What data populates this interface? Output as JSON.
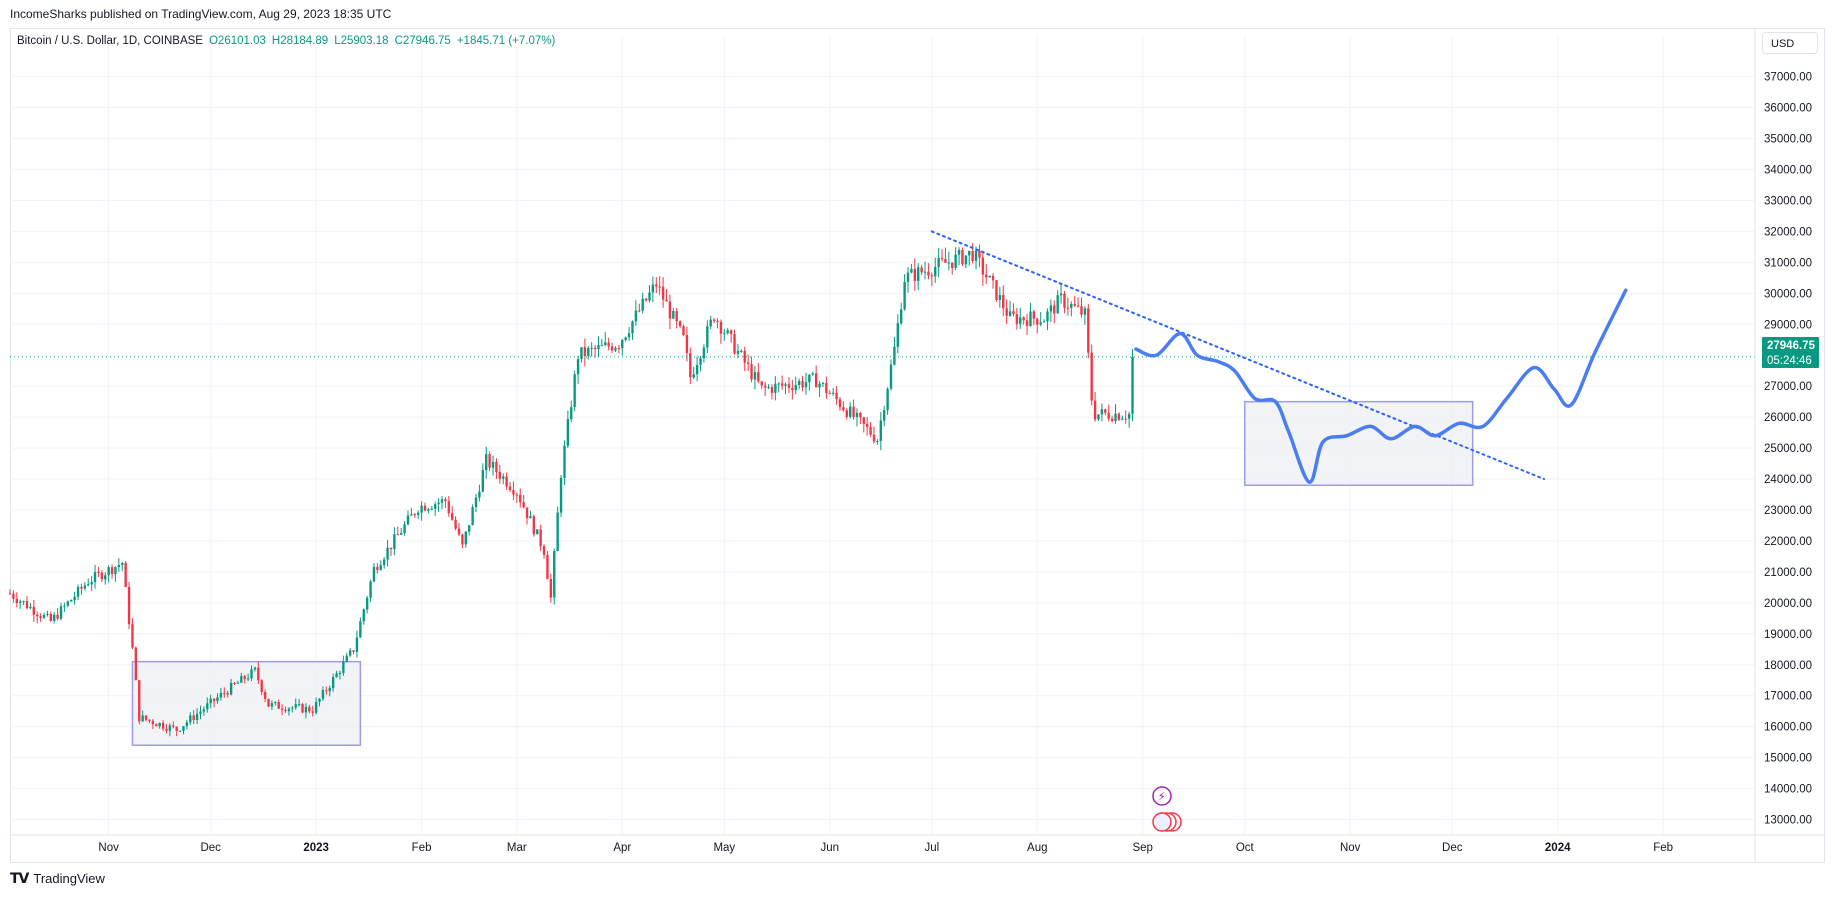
{
  "header": {
    "published_line": "IncomeSharks published on TradingView.com, Aug 29, 2023 18:35 UTC"
  },
  "legend": {
    "symbol": "Bitcoin / U.S. Dollar, 1D, COINBASE",
    "open": "O26101.03",
    "high": "H28184.89",
    "low": "L25903.18",
    "close": "C27946.75",
    "change": "+1845.71 (+7.07%)"
  },
  "currency_button": {
    "label": "USD"
  },
  "price_badge": {
    "price": "27946.75",
    "countdown": "05:24:46"
  },
  "footer": {
    "brand": "TradingView"
  },
  "colors": {
    "up": "#089981",
    "down": "#f23645",
    "projection": "#4a7ef0",
    "trendline": "#2962ff",
    "box_stroke": "#9c9ce8",
    "box_fill": "#eef0f3",
    "grid": "#f0f3fa"
  },
  "chart_data": {
    "type": "candlestick",
    "symbol": "Bitcoin / U.S. Dollar",
    "interval": "1D",
    "exchange": "COINBASE",
    "ylim": [
      12500,
      37700
    ],
    "y_ticks": [
      "13000.00",
      "14000.00",
      "15000.00",
      "16000.00",
      "17000.00",
      "18000.00",
      "19000.00",
      "20000.00",
      "21000.00",
      "22000.00",
      "23000.00",
      "24000.00",
      "25000.00",
      "26000.00",
      "27000.00",
      "28000.00",
      "29000.00",
      "30000.00",
      "31000.00",
      "32000.00",
      "33000.00",
      "34000.00",
      "35000.00",
      "36000.00",
      "37000.00"
    ],
    "x_ticks": [
      "Nov",
      "Dec",
      "2023",
      "Feb",
      "Mar",
      "Apr",
      "May",
      "Jun",
      "Jul",
      "Aug",
      "Sep",
      "Oct",
      "Nov",
      "Dec",
      "2024",
      "Feb"
    ],
    "x_tick_dates": [
      "2022-11-01",
      "2022-12-01",
      "2023-01-01",
      "2023-02-01",
      "2023-03-01",
      "2023-04-01",
      "2023-05-01",
      "2023-06-01",
      "2023-07-01",
      "2023-08-01",
      "2023-09-01",
      "2023-10-01",
      "2023-11-01",
      "2023-12-01",
      "2024-01-01",
      "2024-02-01"
    ],
    "x_range": [
      "2022-10-03",
      "2024-02-28"
    ],
    "grid": true,
    "current_price": 27946.75,
    "price_anchors": [
      {
        "date": "2022-10-03",
        "price": 20300
      },
      {
        "date": "2022-10-15",
        "price": 19400
      },
      {
        "date": "2022-10-26",
        "price": 20700
      },
      {
        "date": "2022-11-05",
        "price": 21300
      },
      {
        "date": "2022-11-08",
        "price": 18500
      },
      {
        "date": "2022-11-10",
        "price": 16300
      },
      {
        "date": "2022-11-21",
        "price": 15900
      },
      {
        "date": "2022-12-05",
        "price": 17100
      },
      {
        "date": "2022-12-14",
        "price": 17800
      },
      {
        "date": "2022-12-18",
        "price": 16700
      },
      {
        "date": "2022-12-31",
        "price": 16550
      },
      {
        "date": "2023-01-12",
        "price": 18500
      },
      {
        "date": "2023-01-18",
        "price": 21100
      },
      {
        "date": "2023-01-31",
        "price": 23100
      },
      {
        "date": "2023-02-08",
        "price": 23300
      },
      {
        "date": "2023-02-13",
        "price": 21800
      },
      {
        "date": "2023-02-20",
        "price": 24600
      },
      {
        "date": "2023-03-01",
        "price": 23600
      },
      {
        "date": "2023-03-09",
        "price": 21700
      },
      {
        "date": "2023-03-11",
        "price": 20150
      },
      {
        "date": "2023-03-14",
        "price": 24200
      },
      {
        "date": "2023-03-19",
        "price": 28000
      },
      {
        "date": "2023-03-31",
        "price": 28400
      },
      {
        "date": "2023-04-11",
        "price": 30300
      },
      {
        "date": "2023-04-19",
        "price": 28500
      },
      {
        "date": "2023-04-21",
        "price": 27300
      },
      {
        "date": "2023-04-28",
        "price": 29300
      },
      {
        "date": "2023-05-12",
        "price": 26900
      },
      {
        "date": "2023-05-28",
        "price": 27200
      },
      {
        "date": "2023-06-10",
        "price": 25800
      },
      {
        "date": "2023-06-15",
        "price": 25300
      },
      {
        "date": "2023-06-20",
        "price": 28200
      },
      {
        "date": "2023-06-23",
        "price": 30500
      },
      {
        "date": "2023-07-13",
        "price": 31300
      },
      {
        "date": "2023-07-20",
        "price": 30000
      },
      {
        "date": "2023-07-24",
        "price": 29200
      },
      {
        "date": "2023-08-03",
        "price": 29200
      },
      {
        "date": "2023-08-08",
        "price": 29800
      },
      {
        "date": "2023-08-15",
        "price": 29300
      },
      {
        "date": "2023-08-17",
        "price": 26600
      },
      {
        "date": "2023-08-18",
        "price": 26100
      },
      {
        "date": "2023-08-28",
        "price": 26100
      },
      {
        "date": "2023-08-29",
        "price": 27946.75
      }
    ],
    "annotations": {
      "trendline": {
        "style": "dotted",
        "from": {
          "date": "2023-07-01",
          "price": 32000
        },
        "to": {
          "date": "2023-12-28",
          "price": 24000
        }
      },
      "boxes": [
        {
          "from": "2022-11-08",
          "to": "2023-01-14",
          "top": 18100,
          "bottom": 15400
        },
        {
          "from": "2023-10-01",
          "to": "2023-12-07",
          "top": 26500,
          "bottom": 23800
        }
      ],
      "projection": [
        {
          "date": "2023-08-30",
          "price": 28200
        },
        {
          "date": "2023-09-05",
          "price": 28000
        },
        {
          "date": "2023-09-12",
          "price": 28700
        },
        {
          "date": "2023-09-17",
          "price": 28000
        },
        {
          "date": "2023-09-23",
          "price": 27800
        },
        {
          "date": "2023-09-28",
          "price": 27500
        },
        {
          "date": "2023-10-04",
          "price": 26600
        },
        {
          "date": "2023-10-10",
          "price": 26500
        },
        {
          "date": "2023-10-14",
          "price": 25500
        },
        {
          "date": "2023-10-20",
          "price": 23900
        },
        {
          "date": "2023-10-24",
          "price": 25200
        },
        {
          "date": "2023-10-31",
          "price": 25400
        },
        {
          "date": "2023-11-07",
          "price": 25700
        },
        {
          "date": "2023-11-13",
          "price": 25300
        },
        {
          "date": "2023-11-20",
          "price": 25700
        },
        {
          "date": "2023-11-26",
          "price": 25400
        },
        {
          "date": "2023-12-03",
          "price": 25800
        },
        {
          "date": "2023-12-10",
          "price": 25700
        },
        {
          "date": "2023-12-17",
          "price": 26600
        },
        {
          "date": "2023-12-25",
          "price": 27600
        },
        {
          "date": "2023-12-31",
          "price": 26900
        },
        {
          "date": "2024-01-05",
          "price": 26400
        },
        {
          "date": "2024-01-12",
          "price": 28100
        },
        {
          "date": "2024-01-21",
          "price": 30100
        }
      ]
    }
  }
}
